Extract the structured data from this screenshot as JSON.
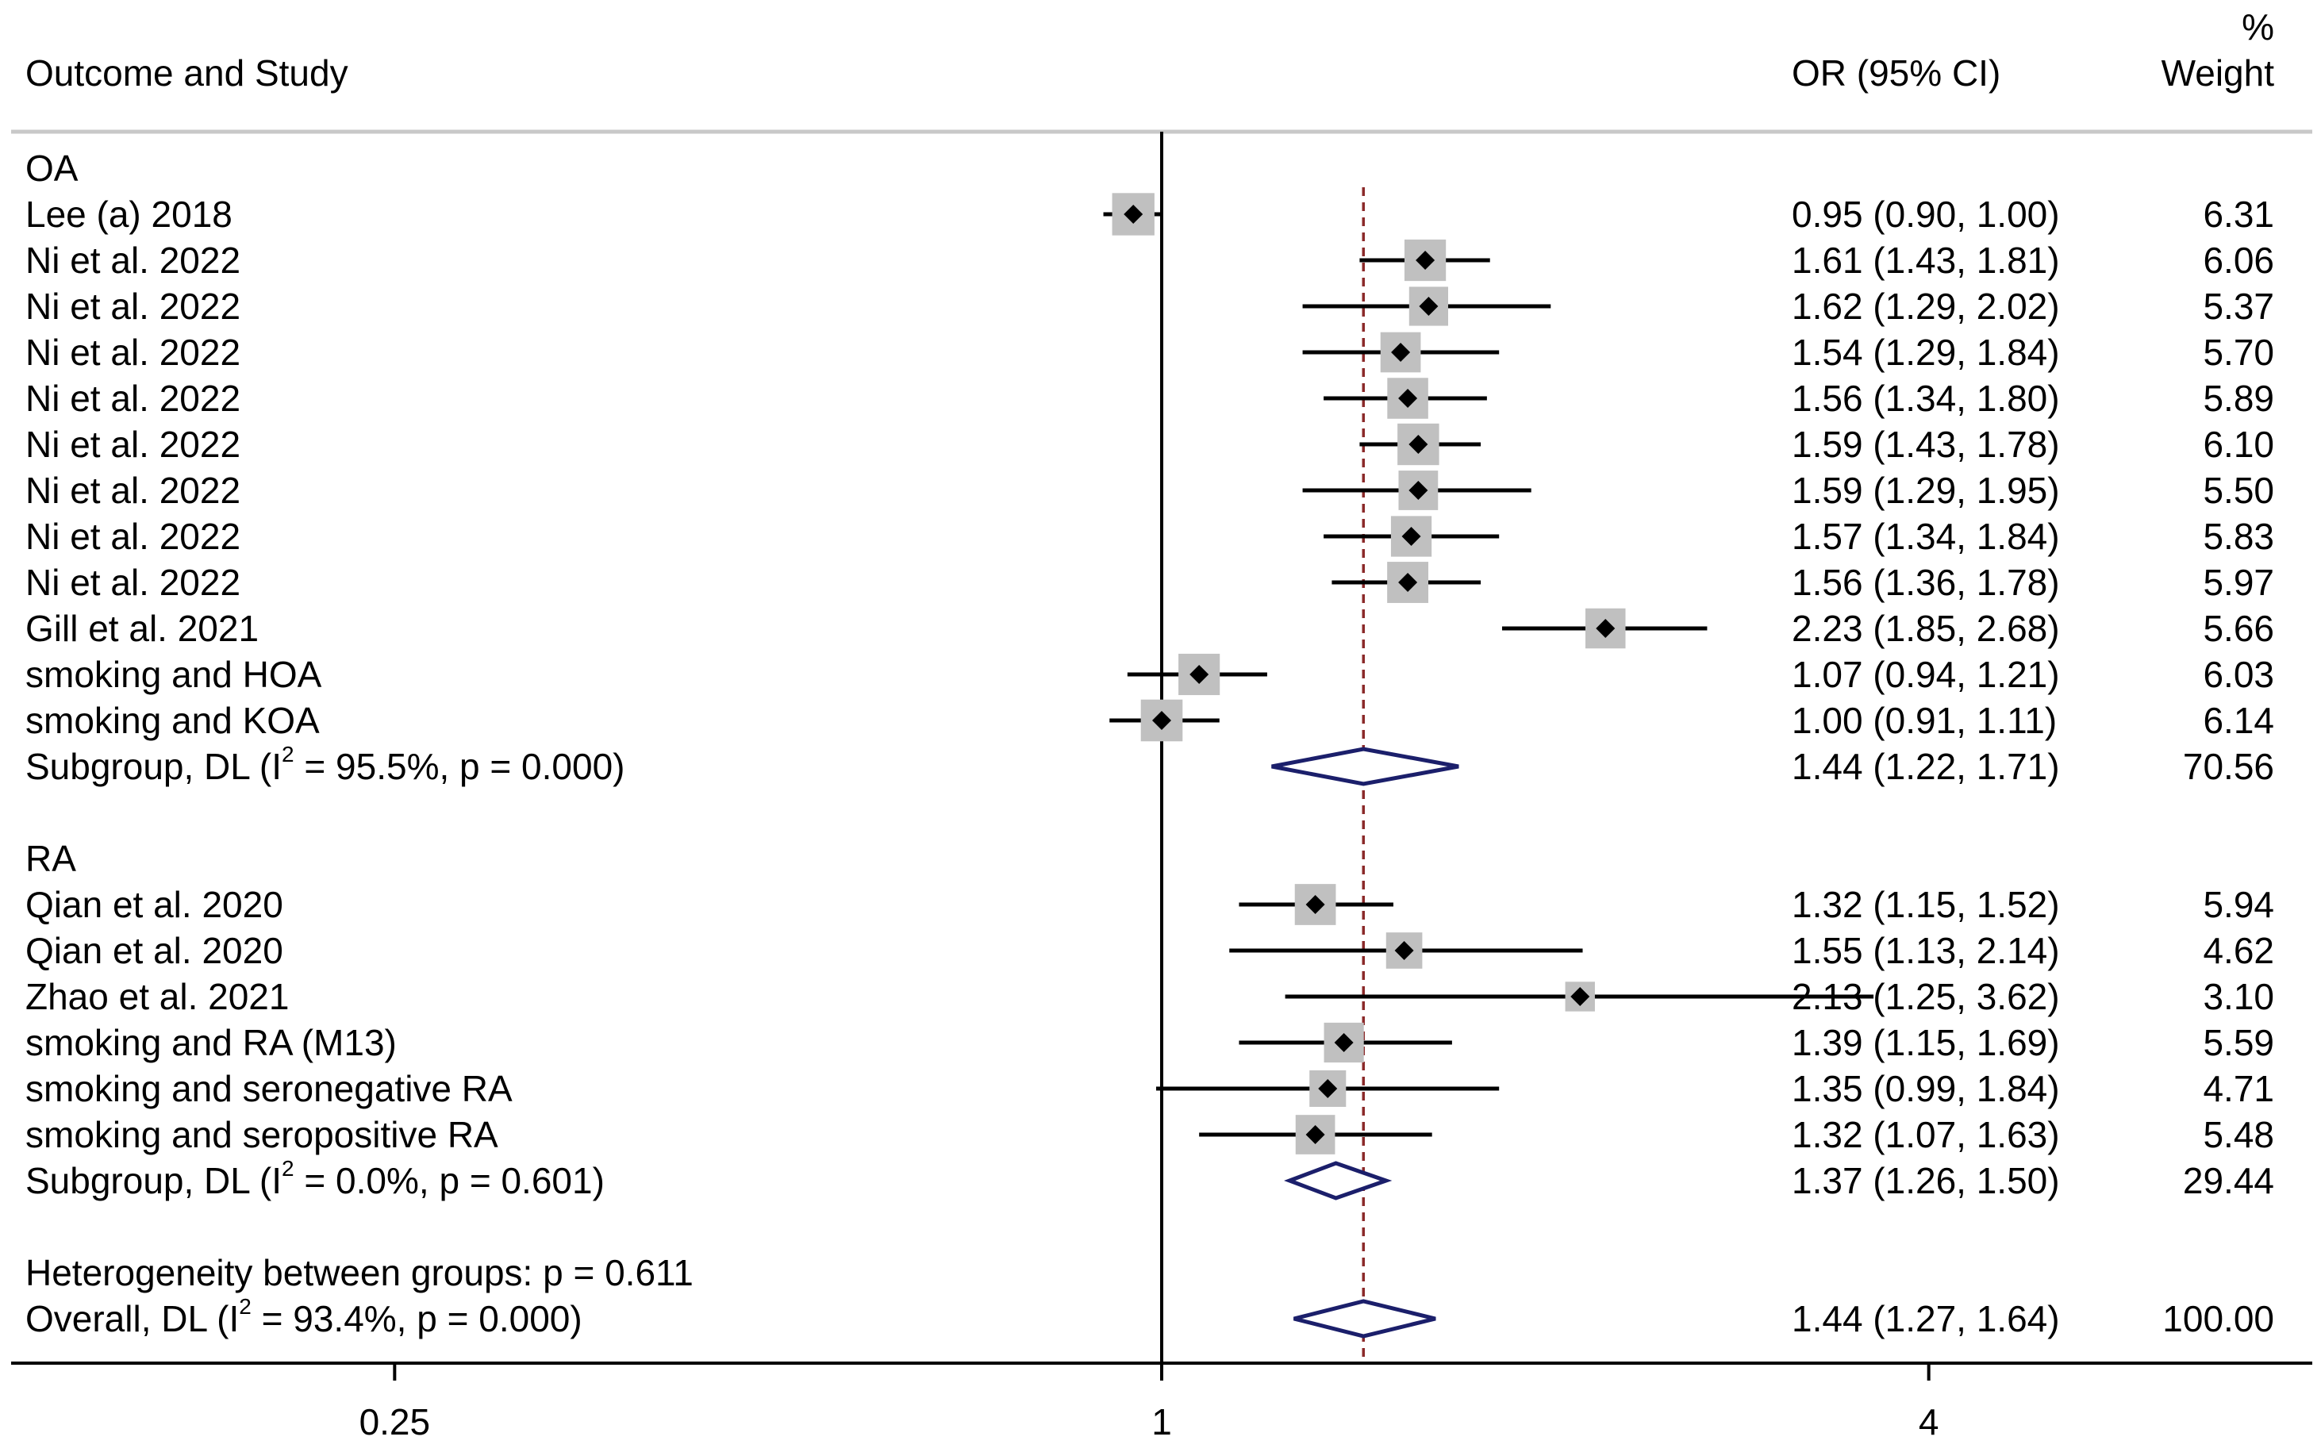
{
  "chart_data": {
    "type": "forest",
    "headers": {
      "study": "Outcome and Study",
      "effect": "OR (95% CI)",
      "weight_line1": "%",
      "weight_line2": "Weight"
    },
    "x_scale": "log",
    "xlim": [
      0.125,
      8
    ],
    "x_ticks": [
      {
        "value": 0.25,
        "label": "0.25"
      },
      {
        "value": 1,
        "label": "1"
      },
      {
        "value": 4,
        "label": "4"
      }
    ],
    "null_value": 1,
    "overall_effect": 1.44,
    "rows": [
      {
        "kind": "group",
        "label": "OA"
      },
      {
        "kind": "study",
        "label": "Lee (a) 2018",
        "or": 0.95,
        "lo": 0.9,
        "hi": 1.0,
        "or_text": "0.95 (0.90, 1.00)",
        "weight": 6.31,
        "weight_text": "6.31"
      },
      {
        "kind": "study",
        "label": "Ni et al. 2022",
        "or": 1.61,
        "lo": 1.43,
        "hi": 1.81,
        "or_text": "1.61 (1.43, 1.81)",
        "weight": 6.06,
        "weight_text": "6.06"
      },
      {
        "kind": "study",
        "label": "Ni et al. 2022",
        "or": 1.62,
        "lo": 1.29,
        "hi": 2.02,
        "or_text": "1.62 (1.29, 2.02)",
        "weight": 5.37,
        "weight_text": "5.37"
      },
      {
        "kind": "study",
        "label": "Ni et al. 2022",
        "or": 1.54,
        "lo": 1.29,
        "hi": 1.84,
        "or_text": "1.54 (1.29, 1.84)",
        "weight": 5.7,
        "weight_text": "5.70"
      },
      {
        "kind": "study",
        "label": "Ni et al. 2022",
        "or": 1.56,
        "lo": 1.34,
        "hi": 1.8,
        "or_text": "1.56 (1.34, 1.80)",
        "weight": 5.89,
        "weight_text": "5.89"
      },
      {
        "kind": "study",
        "label": "Ni et al. 2022",
        "or": 1.59,
        "lo": 1.43,
        "hi": 1.78,
        "or_text": "1.59 (1.43, 1.78)",
        "weight": 6.1,
        "weight_text": "6.10"
      },
      {
        "kind": "study",
        "label": "Ni et al. 2022",
        "or": 1.59,
        "lo": 1.29,
        "hi": 1.95,
        "or_text": "1.59 (1.29, 1.95)",
        "weight": 5.5,
        "weight_text": "5.50"
      },
      {
        "kind": "study",
        "label": "Ni et al. 2022",
        "or": 1.57,
        "lo": 1.34,
        "hi": 1.84,
        "or_text": "1.57 (1.34, 1.84)",
        "weight": 5.83,
        "weight_text": "5.83"
      },
      {
        "kind": "study",
        "label": "Ni et al. 2022",
        "or": 1.56,
        "lo": 1.36,
        "hi": 1.78,
        "or_text": "1.56 (1.36, 1.78)",
        "weight": 5.97,
        "weight_text": "5.97"
      },
      {
        "kind": "study",
        "label": "Gill et al. 2021",
        "or": 2.23,
        "lo": 1.85,
        "hi": 2.68,
        "or_text": "2.23 (1.85, 2.68)",
        "weight": 5.66,
        "weight_text": "5.66"
      },
      {
        "kind": "study",
        "label": "smoking and HOA",
        "or": 1.07,
        "lo": 0.94,
        "hi": 1.21,
        "or_text": "1.07 (0.94, 1.21)",
        "weight": 6.03,
        "weight_text": "6.03"
      },
      {
        "kind": "study",
        "label": "smoking and KOA",
        "or": 1.0,
        "lo": 0.91,
        "hi": 1.11,
        "or_text": "1.00 (0.91, 1.11)",
        "weight": 6.14,
        "weight_text": "6.14"
      },
      {
        "kind": "summary",
        "label_pre": "Subgroup, DL (I",
        "label_sup": "2",
        "label_post": " = 95.5%, p = 0.000)",
        "or": 1.44,
        "lo": 1.22,
        "hi": 1.71,
        "or_text": "1.44 (1.22, 1.71)",
        "weight": 70.56,
        "weight_text": "70.56"
      },
      {
        "kind": "blank"
      },
      {
        "kind": "group",
        "label": "RA"
      },
      {
        "kind": "study",
        "label": "Qian et al. 2020",
        "or": 1.32,
        "lo": 1.15,
        "hi": 1.52,
        "or_text": "1.32 (1.15, 1.52)",
        "weight": 5.94,
        "weight_text": "5.94"
      },
      {
        "kind": "study",
        "label": "Qian et al. 2020",
        "or": 1.55,
        "lo": 1.13,
        "hi": 2.14,
        "or_text": "1.55 (1.13, 2.14)",
        "weight": 4.62,
        "weight_text": "4.62"
      },
      {
        "kind": "study",
        "label": "Zhao et al. 2021",
        "or": 2.13,
        "lo": 1.25,
        "hi": 3.62,
        "or_text": "2.13 (1.25, 3.62)",
        "weight": 3.1,
        "weight_text": "3.10"
      },
      {
        "kind": "study",
        "label": "smoking and RA (M13)",
        "or": 1.39,
        "lo": 1.15,
        "hi": 1.69,
        "or_text": "1.39 (1.15, 1.69)",
        "weight": 5.59,
        "weight_text": "5.59"
      },
      {
        "kind": "study",
        "label": "smoking and seronegative RA",
        "or": 1.35,
        "lo": 0.99,
        "hi": 1.84,
        "or_text": "1.35 (0.99, 1.84)",
        "weight": 4.71,
        "weight_text": "4.71"
      },
      {
        "kind": "study",
        "label": "smoking and seropositive RA",
        "or": 1.32,
        "lo": 1.07,
        "hi": 1.63,
        "or_text": "1.32 (1.07, 1.63)",
        "weight": 5.48,
        "weight_text": "5.48"
      },
      {
        "kind": "summary",
        "label_pre": "Subgroup, DL (I",
        "label_sup": "2",
        "label_post": " = 0.0%, p = 0.601)",
        "or": 1.37,
        "lo": 1.26,
        "hi": 1.5,
        "or_text": "1.37 (1.26, 1.50)",
        "weight": 29.44,
        "weight_text": "29.44"
      },
      {
        "kind": "blank"
      },
      {
        "kind": "note",
        "label": "Heterogeneity between groups: p = 0.611"
      },
      {
        "kind": "summary",
        "label_pre": "Overall, DL (I",
        "label_sup": "2",
        "label_post": " = 93.4%, p = 0.000)",
        "or": 1.44,
        "lo": 1.27,
        "hi": 1.64,
        "or_text": "1.44 (1.27, 1.64)",
        "weight": 100.0,
        "weight_text": "100.00"
      }
    ],
    "colors": {
      "text": "#000000",
      "line": "#000000",
      "weight_box": "#c0c0c0",
      "point": "#000000",
      "diamond": "#1b1f6b",
      "ref_line": "#8b2a2a",
      "header_rule": "#c8c8c8"
    }
  }
}
